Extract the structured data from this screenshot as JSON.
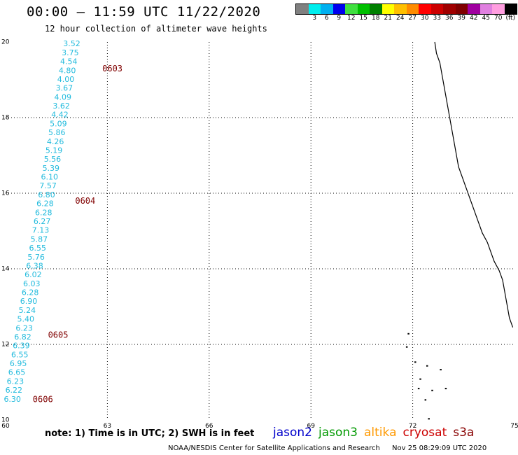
{
  "header": {
    "title": "00:00 – 11:59 UTC 11/22/2020",
    "subtitle": "12 hour collection of altimeter wave heights"
  },
  "legend": {
    "bins": [
      {
        "color": "#808080",
        "label": ""
      },
      {
        "color": "#00eeee",
        "label": "3"
      },
      {
        "color": "#00b0f0",
        "label": "6"
      },
      {
        "color": "#0000ee",
        "label": "9"
      },
      {
        "color": "#40e040",
        "label": "12"
      },
      {
        "color": "#00c000",
        "label": "15"
      },
      {
        "color": "#008000",
        "label": "18"
      },
      {
        "color": "#ffff00",
        "label": "21"
      },
      {
        "color": "#ffc000",
        "label": "24"
      },
      {
        "color": "#ff8c00",
        "label": "27"
      },
      {
        "color": "#ff0000",
        "label": "30"
      },
      {
        "color": "#cc0000",
        "label": "33"
      },
      {
        "color": "#a00000",
        "label": "36"
      },
      {
        "color": "#800000",
        "label": "39"
      },
      {
        "color": "#a000a0",
        "label": "42"
      },
      {
        "color": "#e080e0",
        "label": "45"
      },
      {
        "color": "#ff9ee0",
        "label": "70"
      },
      {
        "color": "#000000",
        "label": "(ft)"
      }
    ]
  },
  "map": {
    "lon_ticks": [
      "60",
      "63",
      "66",
      "69",
      "72",
      "75"
    ],
    "lat_ticks": [
      "20",
      "18",
      "16",
      "14",
      "12",
      "10"
    ],
    "lon_range": [
      60,
      75
    ],
    "lat_range": [
      10,
      20
    ],
    "grid": true,
    "colors": {
      "swh_text": "#22bbdd",
      "time_label": "#800000",
      "coast": "#000000",
      "grid": "#000000"
    },
    "track": {
      "swh_values": [
        "3.52",
        "3.75",
        "4.54",
        "4.80",
        "4.00",
        "3.67",
        "4.09",
        "3.62",
        "4.42",
        "5.09",
        "5.86",
        "4.26",
        "5.19",
        "5.56",
        "5.39",
        "6.10",
        "7.57",
        "6.80",
        "6.28",
        "6.28",
        "6.27",
        "7.13",
        "5.87",
        "6.55",
        "5.76",
        "6.38",
        "6.02",
        "6.03",
        "6.28",
        "6.90",
        "5.24",
        "5.40",
        "6.23",
        "6.82",
        "6.39",
        "6.55",
        "6.95",
        "6.65",
        "6.23",
        "6.22",
        "6.30"
      ],
      "time_labels": [
        "0603",
        "0604",
        "0605",
        "0606"
      ]
    }
  },
  "note": "note:  1) Time is in UTC;  2) SWH is in feet",
  "satellites": [
    {
      "name": "jason2",
      "color": "#0000cc"
    },
    {
      "name": "jason3",
      "color": "#009900"
    },
    {
      "name": "altika",
      "color": "#ff9900"
    },
    {
      "name": "cryosat",
      "color": "#cc0000"
    },
    {
      "name": "s3a",
      "color": "#880000"
    }
  ],
  "footer": {
    "credit": "NOAA/NESDIS Center for Satellite Applications and Research",
    "timestamp": "Nov 25 08:29:09 UTC 2020"
  }
}
